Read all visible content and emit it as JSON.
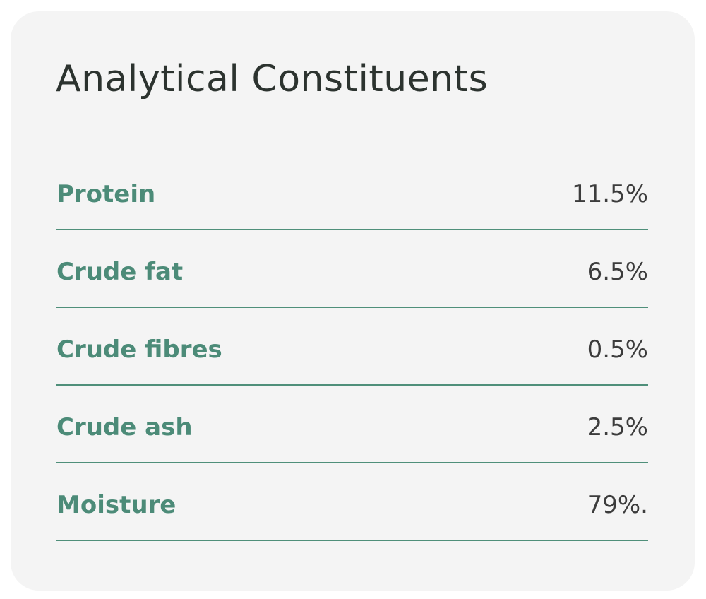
{
  "card": {
    "title": "Analytical Constituents",
    "rows": [
      {
        "label": "Protein",
        "value": "11.5%"
      },
      {
        "label": "Crude fat",
        "value": "6.5%"
      },
      {
        "label": "Crude fibres",
        "value": "0.5%"
      },
      {
        "label": "Crude ash",
        "value": "2.5%"
      },
      {
        "label": "Moisture",
        "value": "79%."
      }
    ]
  }
}
